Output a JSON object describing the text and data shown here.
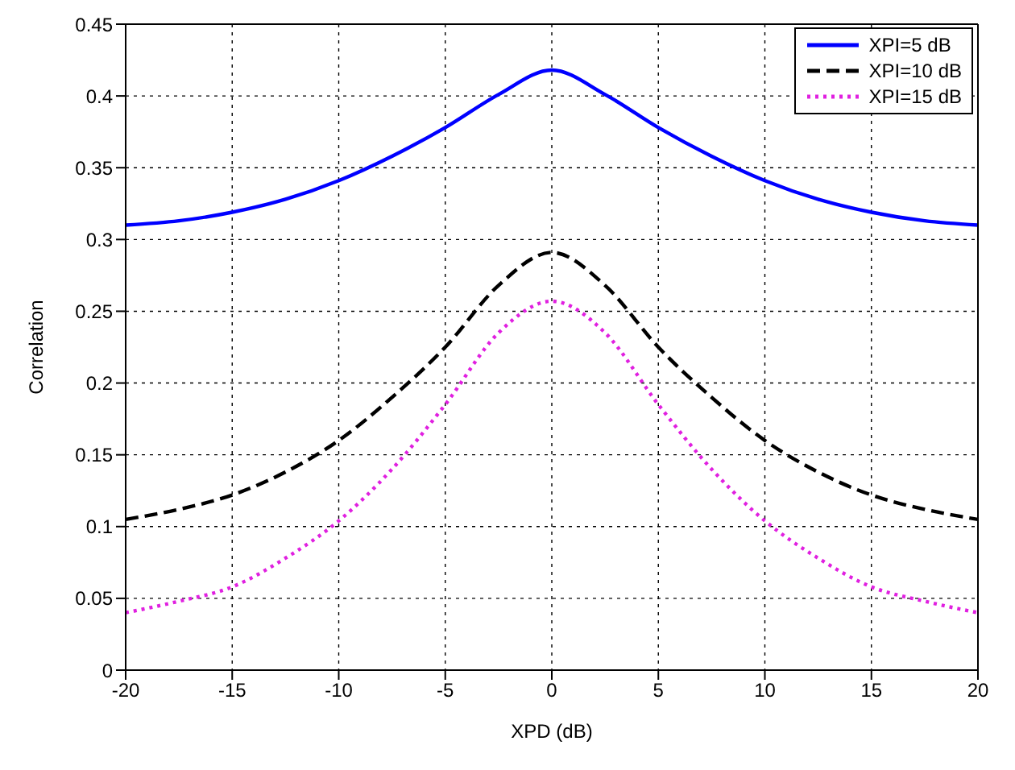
{
  "chart_data": {
    "type": "line",
    "xlabel": "XPD (dB)",
    "ylabel": "Correlation",
    "x": [
      -20,
      -17.5,
      -15,
      -12.5,
      -10,
      -7.5,
      -5,
      -2.5,
      0,
      2.5,
      5,
      7.5,
      10,
      12.5,
      15,
      17.5,
      20
    ],
    "series": [
      {
        "name": "XPI=5 dB",
        "color": "#0000ff",
        "line_style": "solid",
        "values": [
          0.31,
          0.313,
          0.319,
          0.328,
          0.341,
          0.358,
          0.378,
          0.401,
          0.418,
          0.401,
          0.378,
          0.358,
          0.341,
          0.328,
          0.319,
          0.313,
          0.31
        ]
      },
      {
        "name": "XPI=10 dB",
        "color": "#000000",
        "line_style": "dashed",
        "values": [
          0.105,
          0.112,
          0.122,
          0.138,
          0.16,
          0.19,
          0.225,
          0.268,
          0.291,
          0.268,
          0.225,
          0.19,
          0.16,
          0.138,
          0.122,
          0.112,
          0.105
        ]
      },
      {
        "name": "XPI=15 dB",
        "color": "#e020e0",
        "line_style": "dotted",
        "values": [
          0.04,
          0.048,
          0.058,
          0.078,
          0.104,
          0.14,
          0.185,
          0.235,
          0.257,
          0.235,
          0.185,
          0.14,
          0.104,
          0.078,
          0.058,
          0.048,
          0.04
        ]
      }
    ],
    "xlim": [
      -20,
      20
    ],
    "xticks": [
      -20,
      -15,
      -10,
      -5,
      0,
      5,
      10,
      15,
      20
    ],
    "ylim": [
      0,
      0.45
    ],
    "yticks": [
      0,
      0.05,
      0.1,
      0.15,
      0.2,
      0.25,
      0.3,
      0.35,
      0.4,
      0.45
    ],
    "grid": true,
    "legend": "top right",
    "marker": "none"
  }
}
